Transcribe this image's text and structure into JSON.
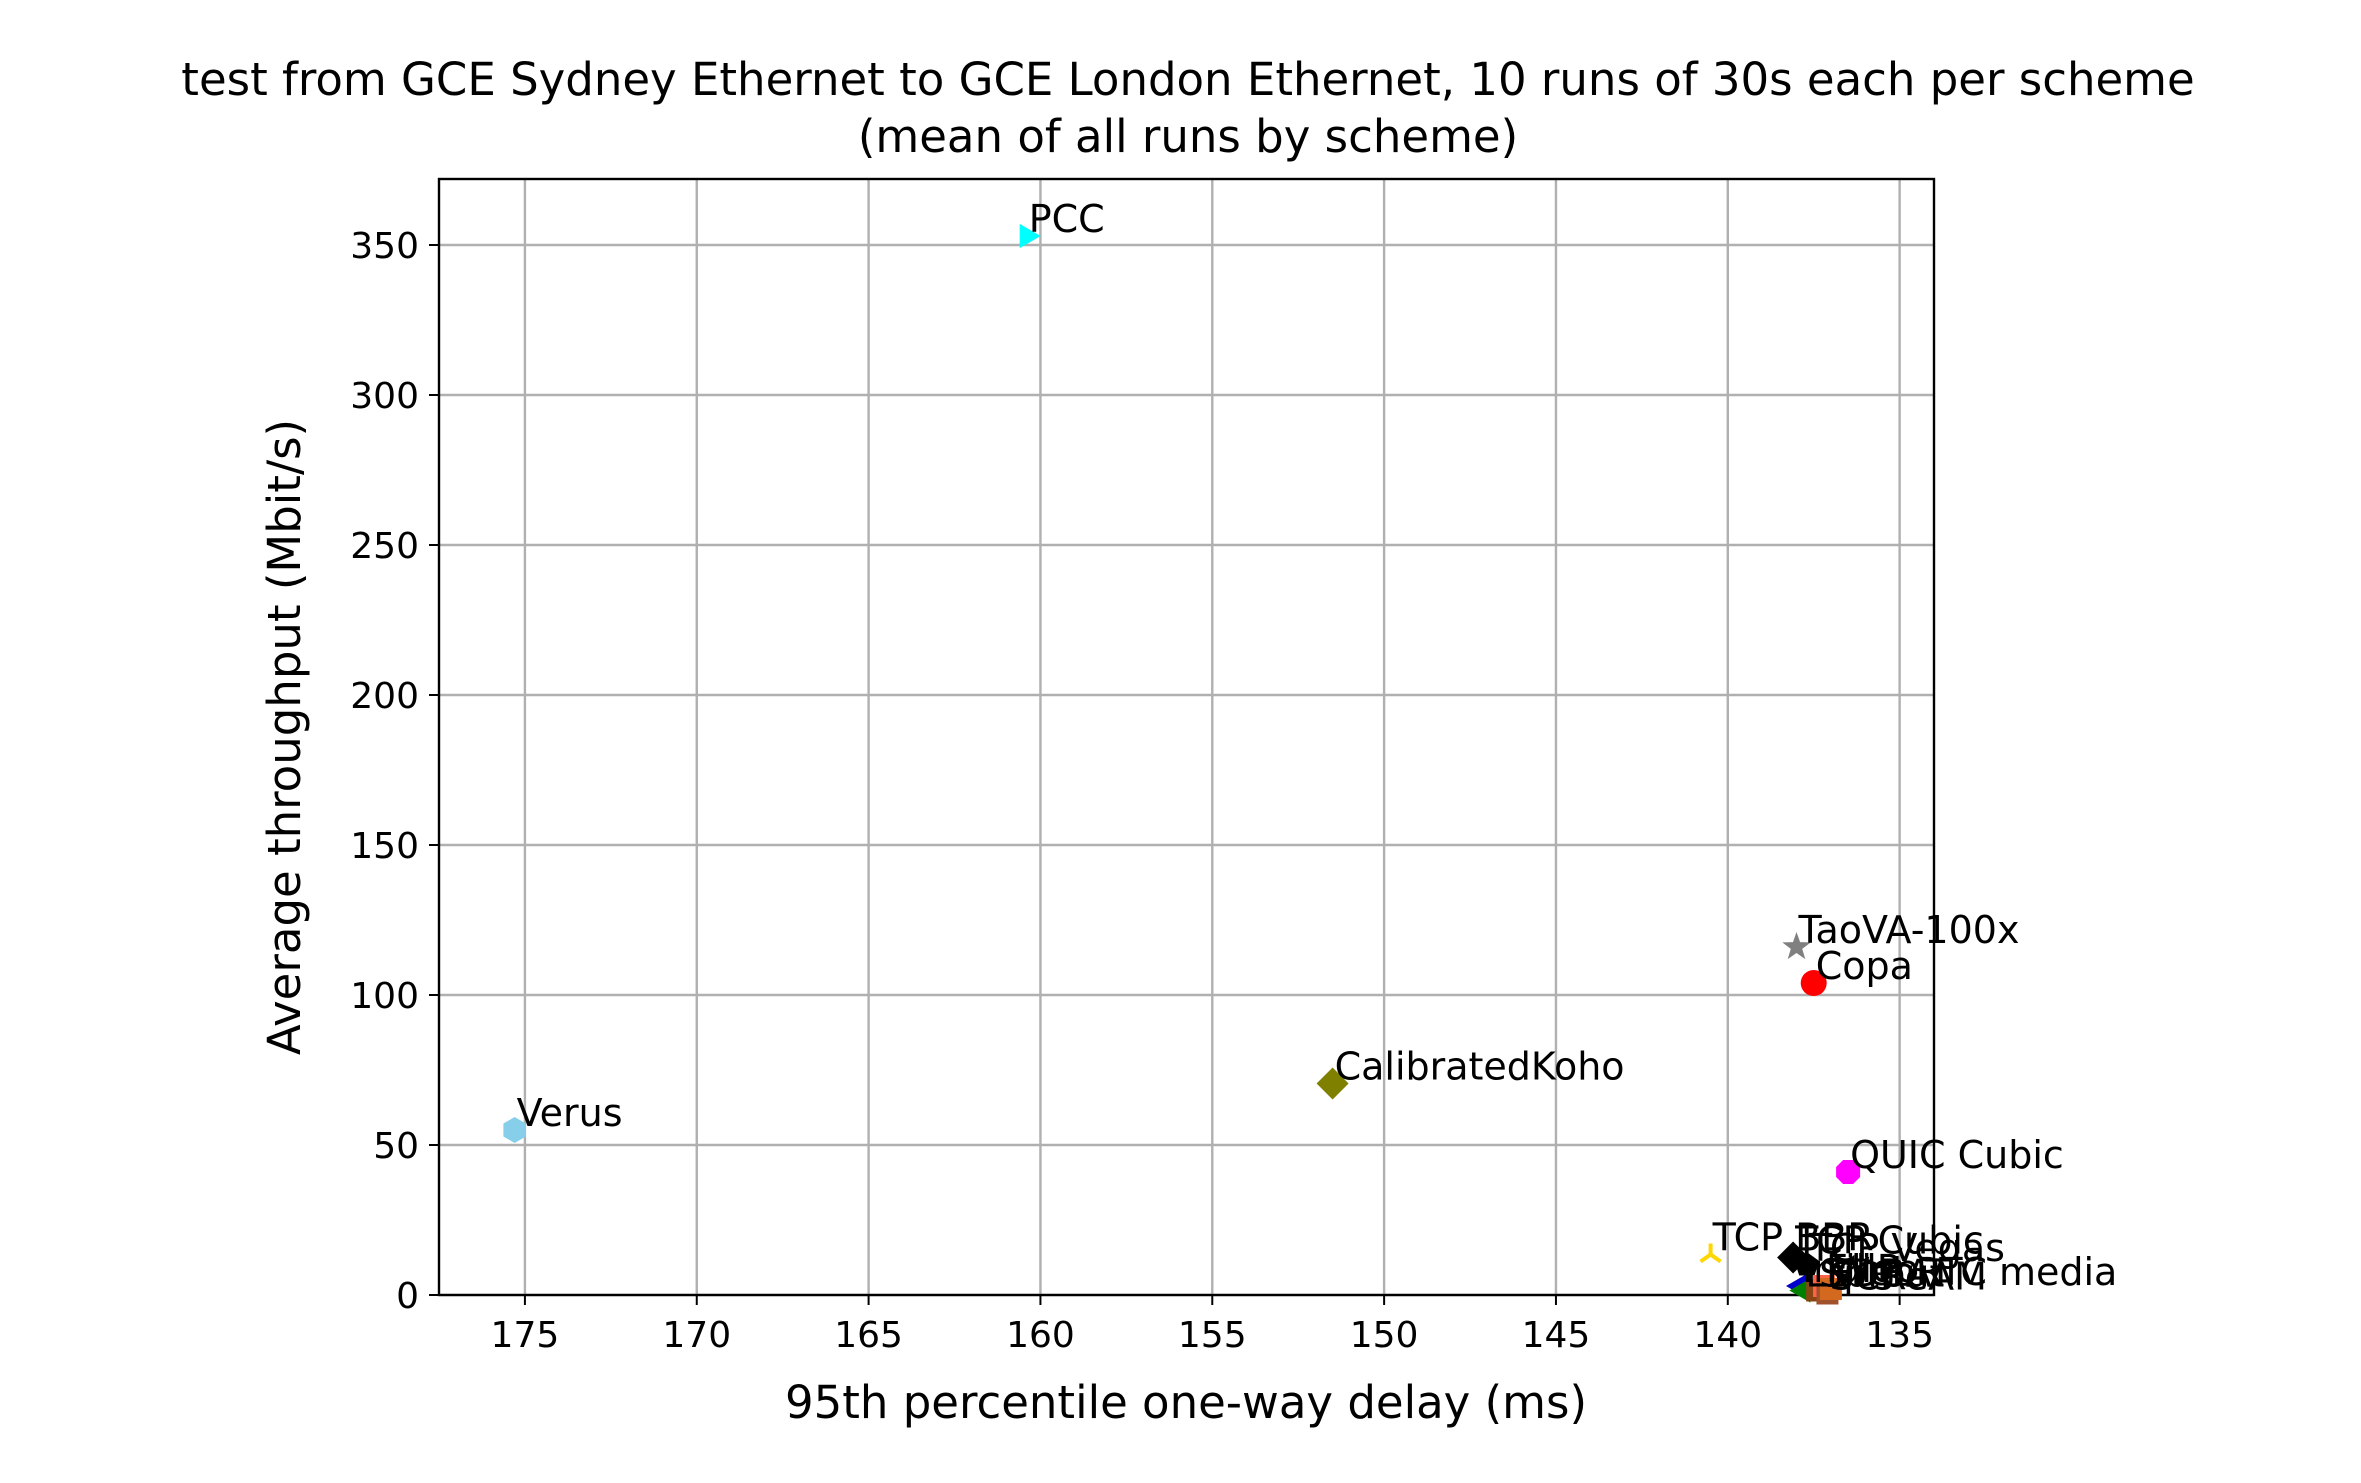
{
  "chart_data": {
    "type": "scatter",
    "title": "test from GCE Sydney Ethernet to GCE London Ethernet, 10 runs of 30s each per scheme",
    "subtitle": "(mean of all runs by scheme)",
    "xlabel": "95th percentile one-way delay (ms)",
    "ylabel": "Average throughput (Mbit/s)",
    "xlim": [
      177.5,
      134
    ],
    "ylim": [
      0,
      372
    ],
    "x_inverted": true,
    "grid": true,
    "xticks": [
      175,
      170,
      165,
      160,
      155,
      150,
      145,
      140,
      135
    ],
    "yticks": [
      0,
      50,
      100,
      150,
      200,
      250,
      300,
      350
    ],
    "points": [
      {
        "name": "PCC",
        "x": 160.4,
        "y": 353,
        "color": "#00ffff",
        "marker": "triangle-right"
      },
      {
        "name": "TaoVA-100x",
        "x": 138.0,
        "y": 116,
        "color": "#808080",
        "marker": "star"
      },
      {
        "name": "Copa",
        "x": 137.5,
        "y": 104,
        "color": "#ff0000",
        "marker": "circle"
      },
      {
        "name": "CalibratedKoho",
        "x": 151.5,
        "y": 70.5,
        "color": "#808000",
        "marker": "diamond"
      },
      {
        "name": "Verus",
        "x": 175.3,
        "y": 55,
        "color": "#87ceeb",
        "marker": "hexagon"
      },
      {
        "name": "QUIC Cubic",
        "x": 136.5,
        "y": 41,
        "color": "#ff00ff",
        "marker": "octagon"
      },
      {
        "name": "TCP BBR",
        "x": 140.5,
        "y": 13.5,
        "color": "#ffd700",
        "marker": "tri-down"
      },
      {
        "name": "TCP Cubic",
        "x": 138.1,
        "y": 12.5,
        "color": "#000000",
        "marker": "diamond"
      },
      {
        "name": "TCP Vegas",
        "x": 137.7,
        "y": 10,
        "color": "#000000",
        "marker": "pentagon"
      },
      {
        "name": "Indigo",
        "x": 137.9,
        "y": 3,
        "color": "#0000cd",
        "marker": "triangle-left"
      },
      {
        "name": "LEDBAT",
        "x": 137.8,
        "y": 1.5,
        "color": "#008000",
        "marker": "triangle-left"
      },
      {
        "name": "Sprout",
        "x": 137.4,
        "y": 1.5,
        "color": "#8b4513",
        "marker": "square"
      },
      {
        "name": "FillP",
        "x": 137.2,
        "y": 3,
        "color": "#ff6347",
        "marker": "square"
      },
      {
        "name": "SCReAM",
        "x": 137.1,
        "y": 0.5,
        "color": "#a0522d",
        "marker": "square"
      },
      {
        "name": "WebRTC media",
        "x": 137.0,
        "y": 2,
        "color": "#d2691e",
        "marker": "square"
      }
    ]
  }
}
